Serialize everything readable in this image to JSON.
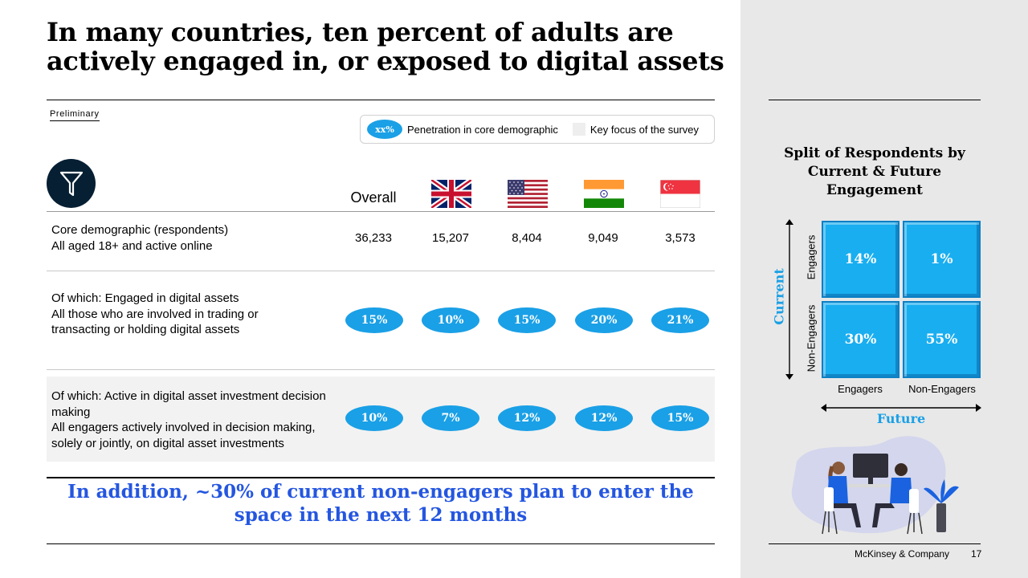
{
  "title": "In many countries, ten percent of adults are actively engaged in, or exposed to digital assets",
  "preliminary_tag": "Preliminary",
  "legend": {
    "pill_label": "xx%",
    "pill_text": "Penetration in core demographic",
    "swatch_text": "Key focus of the survey",
    "accent": "#1aa0e6",
    "swatch_color": "#eeeeee"
  },
  "columns": {
    "overall": "Overall",
    "flags": [
      "uk-flag",
      "us-flag",
      "india-flag",
      "singapore-flag"
    ]
  },
  "rows": [
    {
      "label": "Core demographic (respondents)",
      "sub": "All aged 18+ and active online",
      "values": [
        "36,233",
        "15,207",
        "8,404",
        "9,049",
        "3,573"
      ]
    },
    {
      "label": "Of which: Engaged in digital assets",
      "sub": "All those who are involved in trading or transacting or holding digital assets",
      "values": [
        "15%",
        "10%",
        "15%",
        "20%",
        "21%"
      ]
    },
    {
      "label": "Of which: Active in digital asset investment decision making",
      "sub": "All engagers actively involved in decision making, solely or jointly, on digital asset investments",
      "values": [
        "10%",
        "7%",
        "12%",
        "12%",
        "15%"
      ]
    }
  ],
  "callout": "In addition, ~30% of current non-engagers plan to enter the space in the next 12 months",
  "matrix": {
    "title": "Split of Respondents by Current  & Future Engagement",
    "y_axis": "Current",
    "x_axis": "Future",
    "row_labels": [
      "Engagers",
      "Non-Engagers"
    ],
    "col_labels": [
      "Engagers",
      "Non-Engagers"
    ],
    "cells": [
      [
        "14%",
        "1%"
      ],
      [
        "30%",
        "55%"
      ]
    ]
  },
  "footer": {
    "company": "McKinsey & Company",
    "page": "17"
  }
}
